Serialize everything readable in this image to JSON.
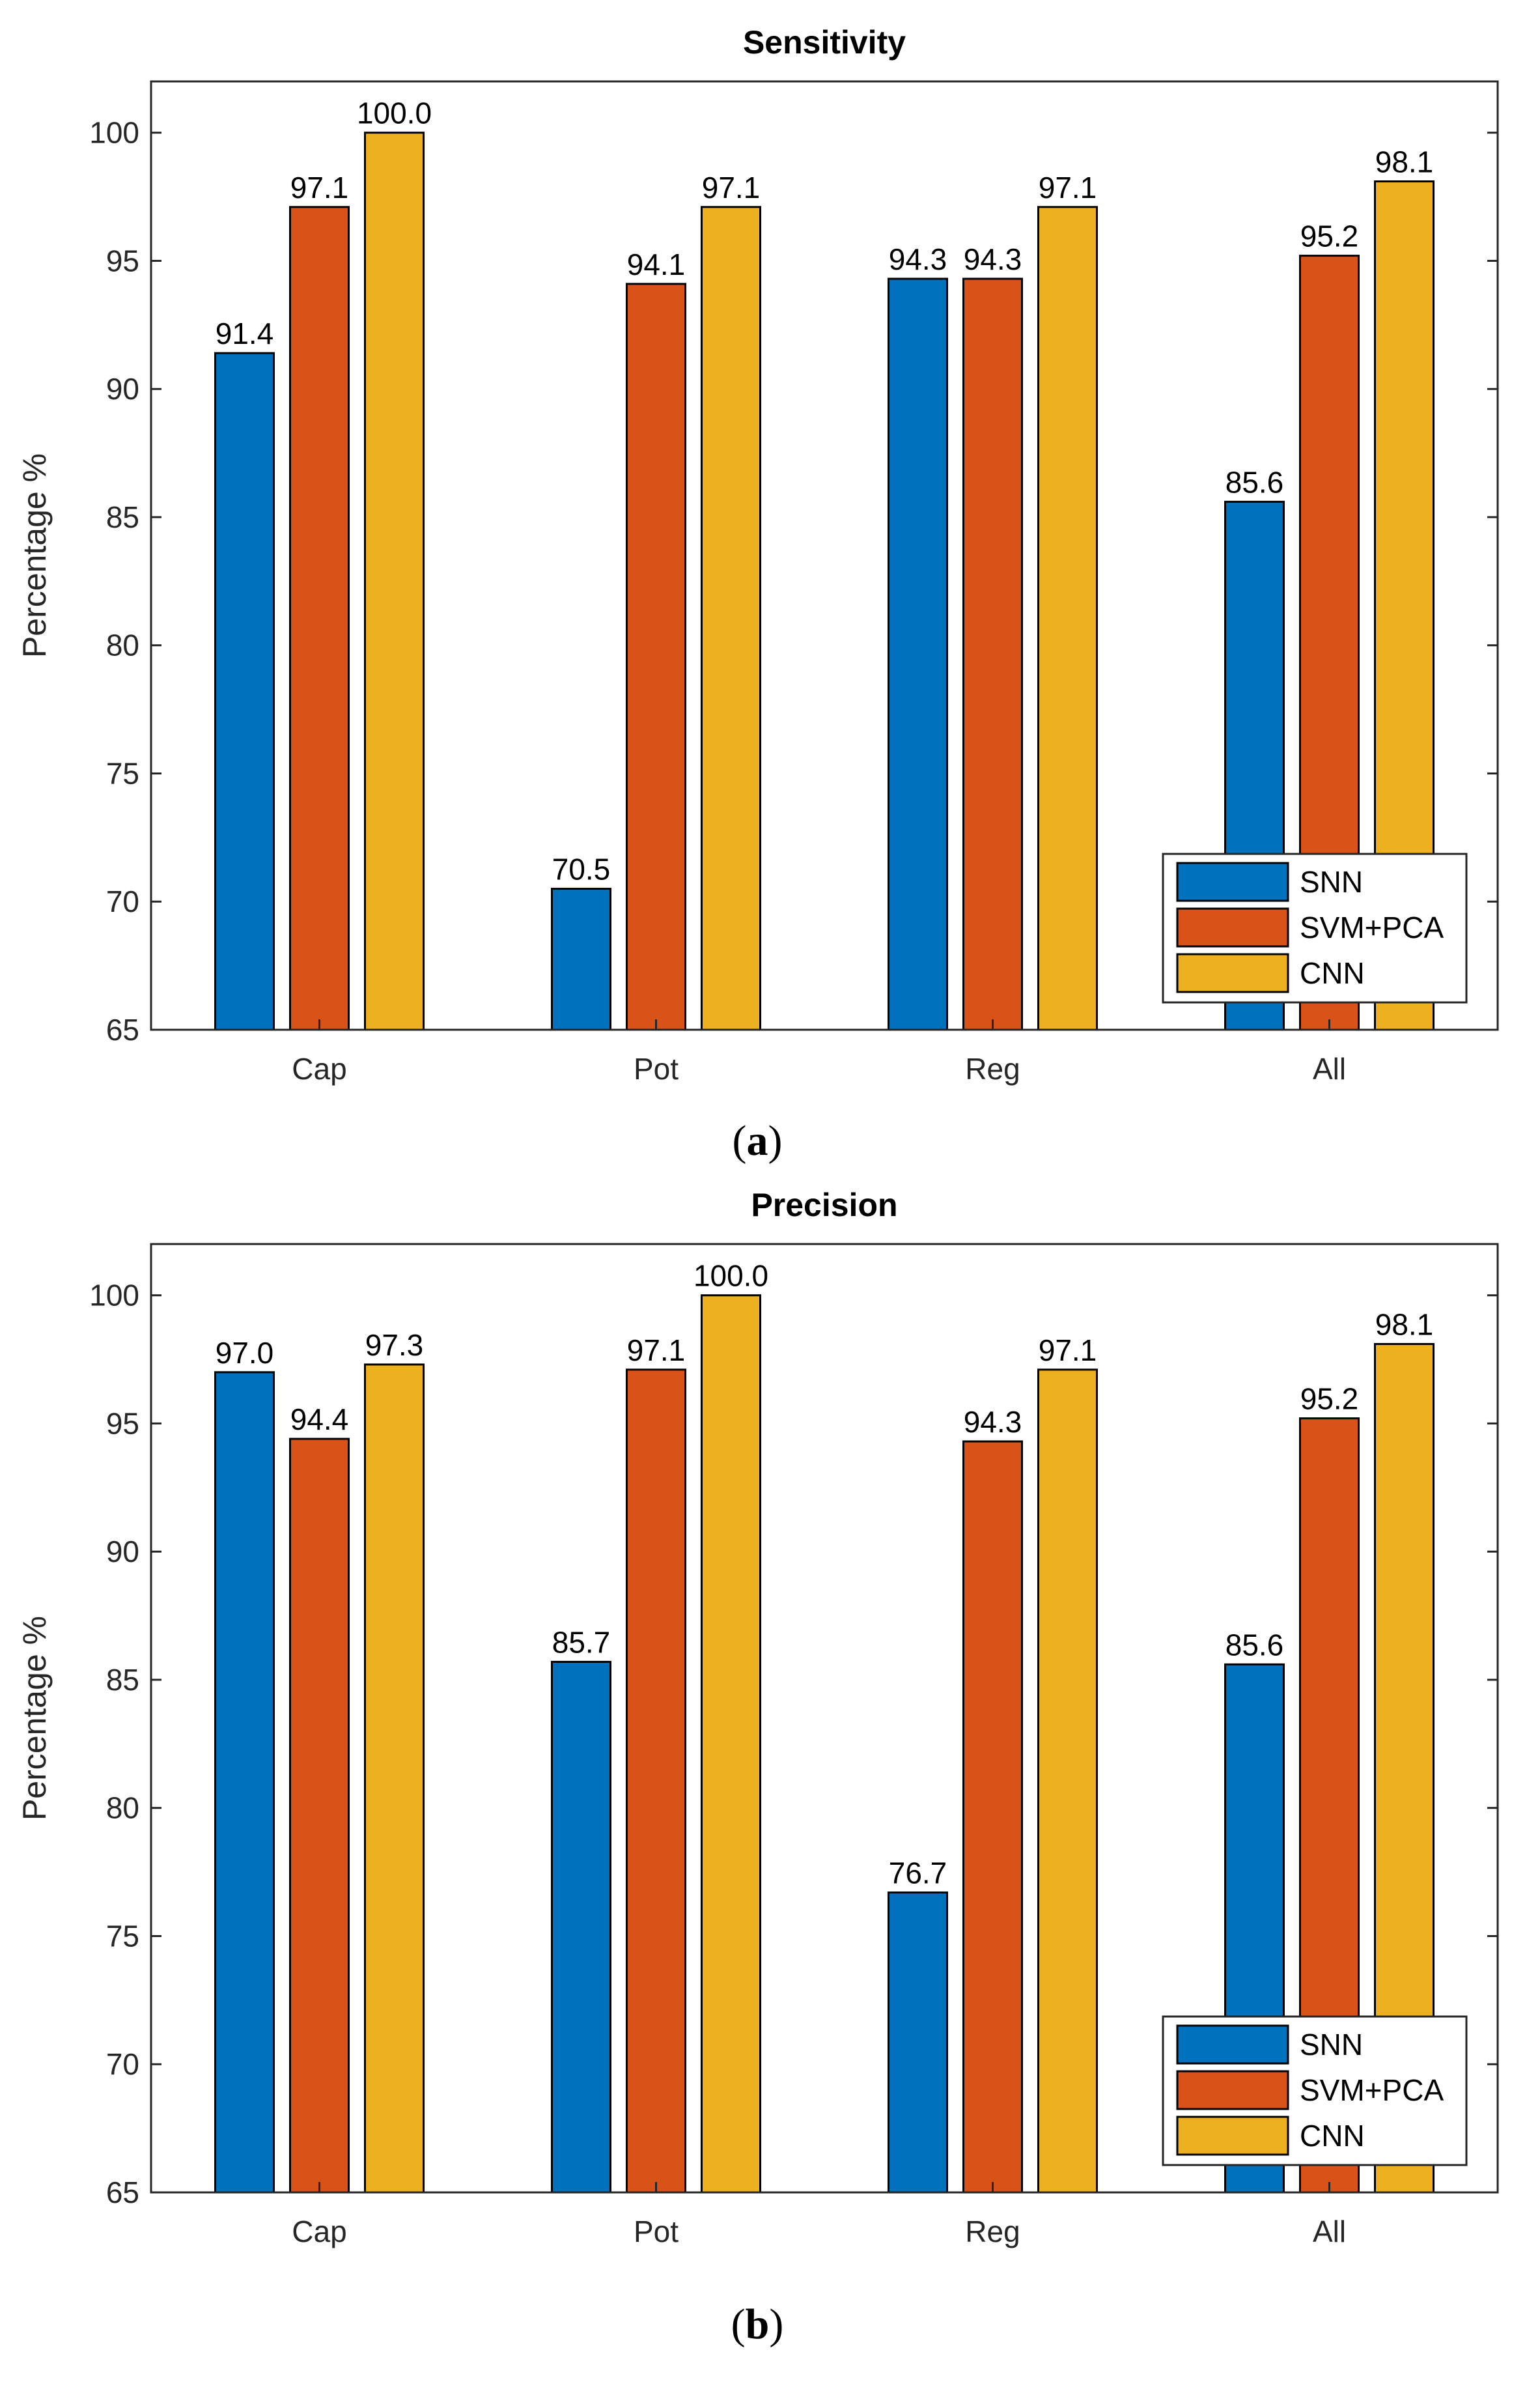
{
  "chart_data": [
    {
      "type": "bar",
      "title": "Sensitivity",
      "caption": "a",
      "xlabel": "",
      "ylabel": "Percentage %",
      "ylim": [
        65,
        102
      ],
      "yticks": [
        65,
        70,
        75,
        80,
        85,
        90,
        95,
        100
      ],
      "categories": [
        "Cap",
        "Pot",
        "Reg",
        "All"
      ],
      "series": [
        {
          "name": "SNN",
          "color": "#0072BD",
          "values": [
            91.4,
            70.5,
            94.3,
            85.6
          ],
          "labels": [
            "91.4",
            "70.5",
            "94.3",
            "85.6"
          ]
        },
        {
          "name": "SVM+PCA",
          "color": "#D95319",
          "values": [
            97.1,
            94.1,
            94.3,
            95.2
          ],
          "labels": [
            "97.1",
            "94.1",
            "94.3",
            "95.2"
          ]
        },
        {
          "name": "CNN",
          "color": "#EDB120",
          "values": [
            100.0,
            97.1,
            97.1,
            98.1
          ],
          "labels": [
            "100.0",
            "97.1",
            "97.1",
            "98.1"
          ]
        }
      ],
      "legend": "bottom-right"
    },
    {
      "type": "bar",
      "title": "Precision",
      "caption": "b",
      "xlabel": "",
      "ylabel": "Percentage %",
      "ylim": [
        65,
        102
      ],
      "yticks": [
        65,
        70,
        75,
        80,
        85,
        90,
        95,
        100
      ],
      "categories": [
        "Cap",
        "Pot",
        "Reg",
        "All"
      ],
      "series": [
        {
          "name": "SNN",
          "color": "#0072BD",
          "values": [
            97.0,
            85.7,
            76.7,
            85.6
          ],
          "labels": [
            "97.0",
            "85.7",
            "76.7",
            "85.6"
          ]
        },
        {
          "name": "SVM+PCA",
          "color": "#D95319",
          "values": [
            94.4,
            97.1,
            94.3,
            95.2
          ],
          "labels": [
            "94.4",
            "97.1",
            "94.3",
            "95.2"
          ]
        },
        {
          "name": "CNN",
          "color": "#EDB120",
          "values": [
            97.3,
            100.0,
            97.1,
            98.1
          ],
          "labels": [
            "97.3",
            "100.0",
            "97.1",
            "98.1"
          ]
        }
      ],
      "legend": "bottom-right"
    }
  ]
}
